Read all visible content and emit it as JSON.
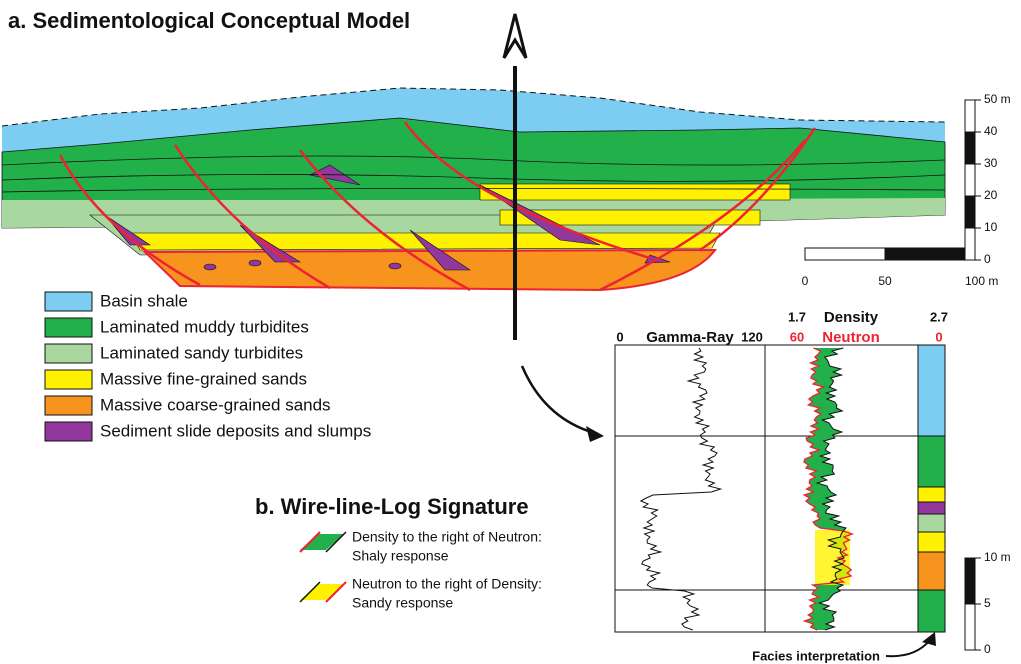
{
  "title_a": "a. Sedimentological Conceptual Model",
  "legend": [
    {
      "label": "Basin shale",
      "color": "#7dcdf3"
    },
    {
      "label": "Laminated muddy turbidites",
      "color": "#22b04b"
    },
    {
      "label": "Laminated sandy turbidites",
      "color": "#a9d7a0"
    },
    {
      "label": "Massive fine-grained sands",
      "color": "#fff200"
    },
    {
      "label": "Massive coarse-grained sands",
      "color": "#f7941d"
    },
    {
      "label": "Sediment slide deposits and slumps",
      "color": "#92379c"
    }
  ],
  "depth_scale": [
    "50 m",
    "40",
    "30",
    "20",
    "10",
    "0"
  ],
  "width_scale": [
    "0",
    "50",
    "100 m"
  ],
  "title_b": "b. Wire-line-Log Signature",
  "log_legend": [
    [
      "Density to the right of Neutron:",
      "Shaly response"
    ],
    [
      "Neutron to the right of Density:",
      "Sandy response"
    ]
  ],
  "log_headers": {
    "density_min": "1.7",
    "density": "Density",
    "density_max": "2.7",
    "gr_min": "0",
    "gamma_ray": "Gamma-Ray",
    "gr_max": "120",
    "neutron_min": "60",
    "neutron": "Neutron",
    "neutron_max": "0"
  },
  "log_scale": [
    "10 m",
    "5",
    "0"
  ],
  "facies_label": "Facies interpretation"
}
